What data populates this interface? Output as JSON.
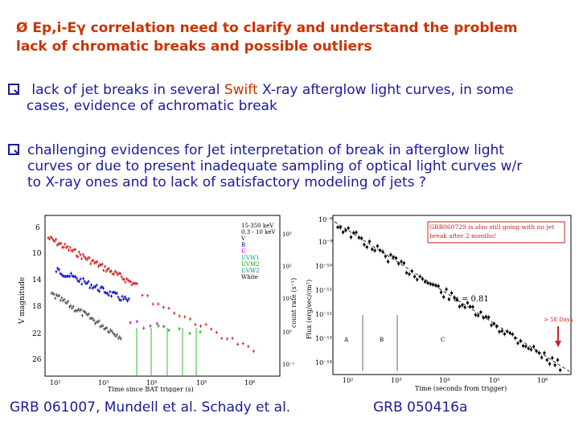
{
  "slide": {
    "title_line1_symbol": "Ø",
    "title_line1": "Ep,i-Eγ correlation need to clarify and understand the problem",
    "title_line2": "lack of chromatic breaks and possible outliers",
    "bullets": [
      {
        "pre": "lack of jet breaks in several ",
        "highlight": "Swift",
        "post": " X-ray afterglow light curves, in some",
        "line2": "cases, evidence of achromatic break"
      },
      {
        "line1": "challenging evidences for Jet interpretation of break in afterglow light",
        "line2": "curves or due to present inadequate sampling of optical light curves w/r",
        "line3": "to X-ray ones and to lack of satisfactory modeling of jets ?"
      }
    ],
    "caption_left": "GRB 061007, Mundell et al. Schady et al.",
    "caption_right": "GRB 050416a"
  },
  "colors": {
    "title": "#cc3300",
    "text": "#1a1a9c",
    "highlight": "#cc3300"
  },
  "left_plot": {
    "ylabel": "V magnitude",
    "xlabel": "Time since BAT trigger (s)",
    "yr_label": "count rate (s⁻¹)",
    "yticks": [
      "6",
      "10",
      "14",
      "18",
      "22",
      "26"
    ],
    "xticks": [
      "10²",
      "10³",
      "10⁴",
      "10⁵",
      "10⁶"
    ],
    "yr_ticks": [
      "10³",
      "10²",
      "10¹",
      "10⁰",
      "10⁻¹"
    ],
    "legend": [
      "15-350 keV",
      "0.3 - 10 keV",
      "V",
      "B",
      "U",
      "UVW1",
      "UVM2",
      "UVW2",
      "White"
    ]
  },
  "right_plot": {
    "ylabel": "Flux (erg/sec/cm²)",
    "xlabel": "Time (seconds from trigger)",
    "yticks": [
      "10⁻⁸",
      "10⁻⁹",
      "10⁻¹⁰",
      "10⁻¹¹",
      "10⁻¹²",
      "10⁻¹³",
      "10⁻¹⁴"
    ],
    "xticks": [
      "10²",
      "10³",
      "10⁴",
      "10⁵",
      "10⁶"
    ],
    "note": "GRB060729 is also still going with no jet break after 2 months!",
    "alpha": "α = 0.81",
    "days": "> 58 Days",
    "segments": [
      "A",
      "B",
      "C"
    ]
  }
}
